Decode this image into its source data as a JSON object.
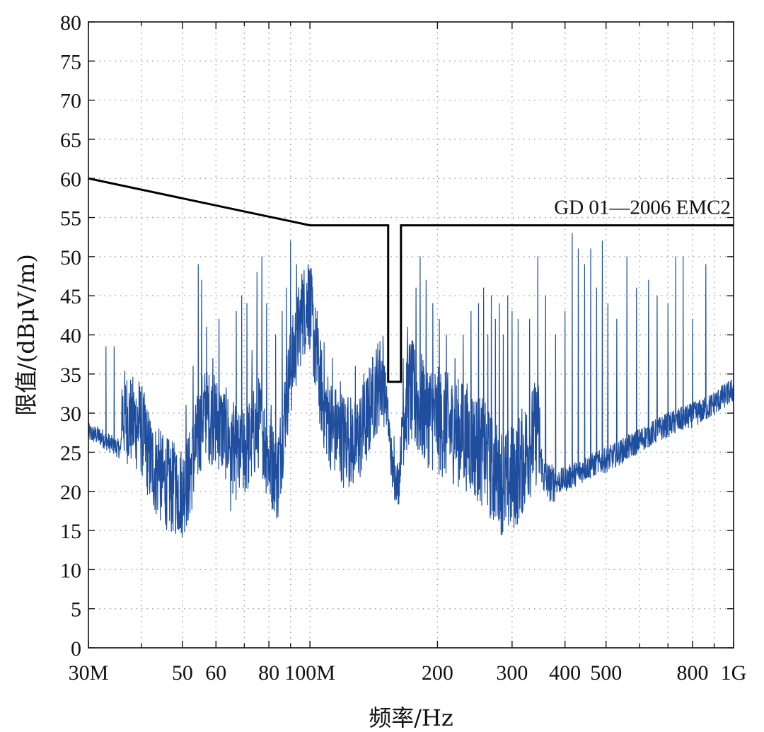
{
  "chart_data": {
    "type": "line",
    "xscale": "log",
    "xlim": [
      30,
      1000
    ],
    "ylim": [
      0,
      80
    ],
    "grid": true,
    "xlabel": "频率/Hz",
    "ylabel": "限值/(dBμV/m)",
    "x_major_ticks": [
      {
        "value": 30,
        "label": "30M"
      },
      {
        "value": 50,
        "label": "50"
      },
      {
        "value": 60,
        "label": "60"
      },
      {
        "value": 80,
        "label": "80"
      },
      {
        "value": 100,
        "label": "100M"
      },
      {
        "value": 200,
        "label": "200"
      },
      {
        "value": 300,
        "label": "300"
      },
      {
        "value": 400,
        "label": "400"
      },
      {
        "value": 500,
        "label": "500"
      },
      {
        "value": 800,
        "label": "800"
      },
      {
        "value": 1000,
        "label": "1G"
      }
    ],
    "x_minor_ticks": [
      40,
      70,
      90,
      600,
      700,
      900
    ],
    "y_ticks": [
      0,
      5,
      10,
      15,
      20,
      25,
      30,
      35,
      40,
      45,
      50,
      55,
      60,
      65,
      70,
      75,
      80
    ],
    "limit_line": {
      "name": "GD 01—2006 EMC2",
      "color": "#000000",
      "points": [
        [
          30,
          60
        ],
        [
          100,
          54
        ],
        [
          153,
          54
        ],
        [
          153,
          34
        ],
        [
          164,
          34
        ],
        [
          164,
          54
        ],
        [
          1000,
          54
        ]
      ]
    },
    "measured_series": {
      "color": "#1f4e9e",
      "noise_floor": [
        [
          30,
          27.5
        ],
        [
          32,
          27
        ],
        [
          34,
          26
        ],
        [
          35.8,
          25.3
        ],
        [
          36,
          30
        ],
        [
          38,
          29
        ],
        [
          40,
          28
        ],
        [
          42,
          24
        ],
        [
          44,
          22
        ],
        [
          47,
          20.5
        ],
        [
          50,
          20
        ],
        [
          52,
          22
        ],
        [
          54,
          26
        ],
        [
          56,
          30
        ],
        [
          60,
          29
        ],
        [
          64,
          27
        ],
        [
          68,
          24
        ],
        [
          72,
          26
        ],
        [
          76,
          29
        ],
        [
          80,
          24
        ],
        [
          84,
          22
        ],
        [
          88,
          32
        ],
        [
          92,
          38
        ],
        [
          96,
          43
        ],
        [
          100,
          44
        ],
        [
          104,
          36
        ],
        [
          108,
          31
        ],
        [
          113,
          28
        ],
        [
          120,
          27
        ],
        [
          128,
          26
        ],
        [
          136,
          29
        ],
        [
          143,
          33
        ],
        [
          149,
          35
        ],
        [
          153,
          29
        ],
        [
          157,
          22
        ],
        [
          162,
          21
        ],
        [
          166,
          30
        ],
        [
          172,
          33
        ],
        [
          180,
          31
        ],
        [
          190,
          30
        ],
        [
          200,
          29
        ],
        [
          215,
          28
        ],
        [
          235,
          27
        ],
        [
          255,
          25
        ],
        [
          275,
          22
        ],
        [
          290,
          21
        ],
        [
          305,
          22
        ],
        [
          325,
          25
        ],
        [
          345,
          28
        ],
        [
          355,
          22
        ],
        [
          370,
          21
        ],
        [
          400,
          21.5
        ],
        [
          450,
          23
        ],
        [
          500,
          24
        ],
        [
          560,
          25.5
        ],
        [
          620,
          27
        ],
        [
          700,
          28.5
        ],
        [
          780,
          29.5
        ],
        [
          860,
          30.5
        ],
        [
          940,
          32
        ],
        [
          1000,
          33
        ]
      ],
      "peaks": [
        [
          33,
          38.5
        ],
        [
          34.5,
          38.5
        ],
        [
          36,
          33
        ],
        [
          38,
          32
        ],
        [
          39.5,
          34
        ],
        [
          41,
          30
        ],
        [
          44,
          28
        ],
        [
          48,
          25
        ],
        [
          51,
          31
        ],
        [
          53,
          36
        ],
        [
          54.5,
          49
        ],
        [
          55.5,
          47
        ],
        [
          57,
          41
        ],
        [
          59,
          37
        ],
        [
          61,
          42
        ],
        [
          63,
          30
        ],
        [
          65,
          17.5
        ],
        [
          67,
          43
        ],
        [
          69,
          45
        ],
        [
          71,
          44
        ],
        [
          73,
          38
        ],
        [
          75,
          48
        ],
        [
          77,
          50
        ],
        [
          79,
          44
        ],
        [
          81,
          31
        ],
        [
          83,
          40
        ],
        [
          86,
          43
        ],
        [
          88,
          46
        ],
        [
          90,
          52
        ],
        [
          93,
          49
        ],
        [
          96,
          47
        ],
        [
          99,
          49
        ],
        [
          104,
          43
        ],
        [
          108,
          39
        ],
        [
          113,
          37
        ],
        [
          118,
          34
        ],
        [
          123,
          32
        ],
        [
          128,
          36
        ],
        [
          134,
          35
        ],
        [
          140,
          34
        ],
        [
          146,
          38
        ],
        [
          150,
          36
        ],
        [
          158,
          27
        ],
        [
          166,
          37
        ],
        [
          170,
          41
        ],
        [
          178,
          46
        ],
        [
          182,
          50
        ],
        [
          188,
          47
        ],
        [
          195,
          44
        ],
        [
          202,
          42
        ],
        [
          210,
          40
        ],
        [
          220,
          37
        ],
        [
          230,
          40
        ],
        [
          240,
          43
        ],
        [
          250,
          44
        ],
        [
          257,
          46
        ],
        [
          263,
          40
        ],
        [
          268,
          45
        ],
        [
          274,
          42
        ],
        [
          280,
          44
        ],
        [
          286,
          40
        ],
        [
          293,
          45
        ],
        [
          300,
          43
        ],
        [
          310,
          42
        ],
        [
          320,
          46
        ],
        [
          330,
          42
        ],
        [
          345,
          50
        ],
        [
          360,
          45
        ],
        [
          380,
          40
        ],
        [
          400,
          43
        ],
        [
          416,
          53
        ],
        [
          430,
          51
        ],
        [
          445,
          49
        ],
        [
          460,
          51
        ],
        [
          475,
          46
        ],
        [
          490,
          52
        ],
        [
          505,
          44
        ],
        [
          530,
          42
        ],
        [
          560,
          50
        ],
        [
          590,
          46
        ],
        [
          630,
          47
        ],
        [
          660,
          45
        ],
        [
          700,
          44
        ],
        [
          730,
          50
        ],
        [
          760,
          50
        ],
        [
          800,
          42
        ],
        [
          860,
          49
        ]
      ],
      "dips": [
        [
          65,
          17.5
        ],
        [
          82,
          19
        ],
        [
          120,
          20.5
        ],
        [
          160,
          19
        ],
        [
          282,
          17.5
        ],
        [
          320,
          19.5
        ]
      ]
    }
  }
}
